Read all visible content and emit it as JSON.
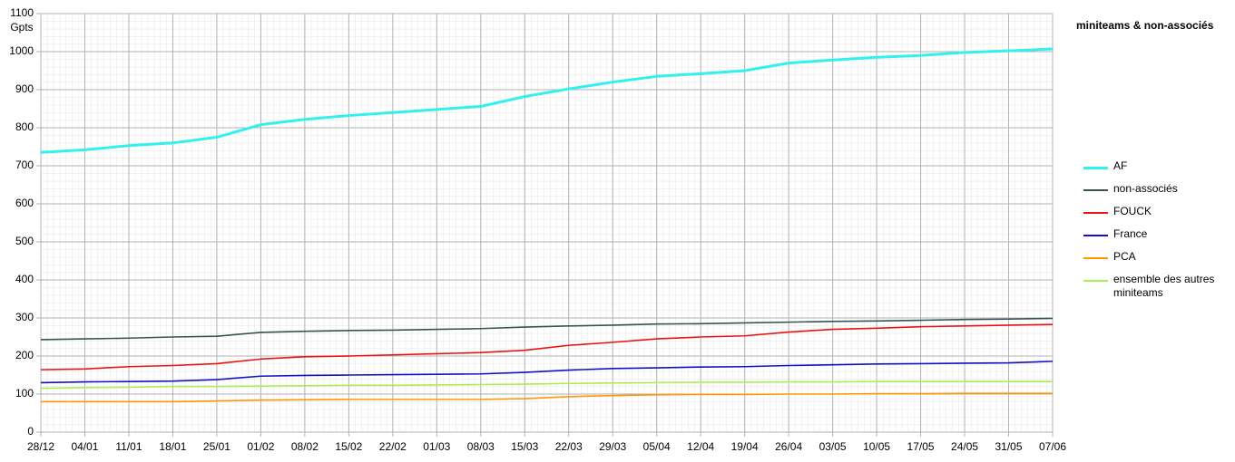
{
  "chart_data": {
    "type": "line",
    "title": "miniteams & non-associés",
    "y_label": "Gpts",
    "categories": [
      "28/12",
      "04/01",
      "11/01",
      "18/01",
      "25/01",
      "01/02",
      "08/02",
      "15/02",
      "22/02",
      "01/03",
      "08/03",
      "15/03",
      "22/03",
      "29/03",
      "05/04",
      "12/04",
      "19/04",
      "26/04",
      "03/05",
      "10/05",
      "17/05",
      "24/05",
      "31/05",
      "07/06"
    ],
    "ylim": [
      0,
      1100
    ],
    "yticks": [
      0,
      100,
      200,
      300,
      400,
      500,
      600,
      700,
      800,
      900,
      1000,
      1100
    ],
    "grid": true,
    "series": [
      {
        "name": "AF",
        "color": "#33f0f0",
        "values": [
          735,
          742,
          753,
          760,
          775,
          808,
          822,
          832,
          840,
          848,
          856,
          882,
          902,
          920,
          935,
          942,
          950,
          970,
          978,
          985,
          990,
          998,
          1002,
          1007
        ]
      },
      {
        "name": "non-associés",
        "color": "#355555",
        "values": [
          243,
          245,
          247,
          250,
          252,
          262,
          265,
          267,
          268,
          270,
          272,
          276,
          279,
          281,
          284,
          285,
          287,
          289,
          291,
          292,
          294,
          296,
          297,
          299
        ]
      },
      {
        "name": "FOUCK",
        "color": "#ee1111",
        "values": [
          164,
          166,
          172,
          175,
          180,
          192,
          198,
          200,
          203,
          206,
          209,
          215,
          228,
          236,
          245,
          250,
          253,
          263,
          270,
          273,
          277,
          279,
          281,
          283
        ]
      },
      {
        "name": "France",
        "color": "#1111cc",
        "values": [
          130,
          132,
          133,
          134,
          138,
          147,
          149,
          150,
          151,
          152,
          153,
          157,
          163,
          167,
          169,
          171,
          172,
          175,
          177,
          179,
          180,
          181,
          182,
          186
        ]
      },
      {
        "name": "PCA",
        "color": "#ff9900",
        "values": [
          80,
          80,
          80,
          80,
          82,
          84,
          85,
          86,
          86,
          86,
          86,
          88,
          93,
          96,
          98,
          99,
          99,
          100,
          100,
          101,
          101,
          102,
          102,
          102
        ]
      },
      {
        "name": "ensemble des autres miniteams",
        "color": "#aaee55",
        "values": [
          115,
          117,
          118,
          120,
          120,
          121,
          122,
          123,
          123,
          124,
          125,
          126,
          128,
          129,
          130,
          131,
          131,
          132,
          132,
          133,
          133,
          133,
          133,
          133
        ]
      }
    ]
  }
}
